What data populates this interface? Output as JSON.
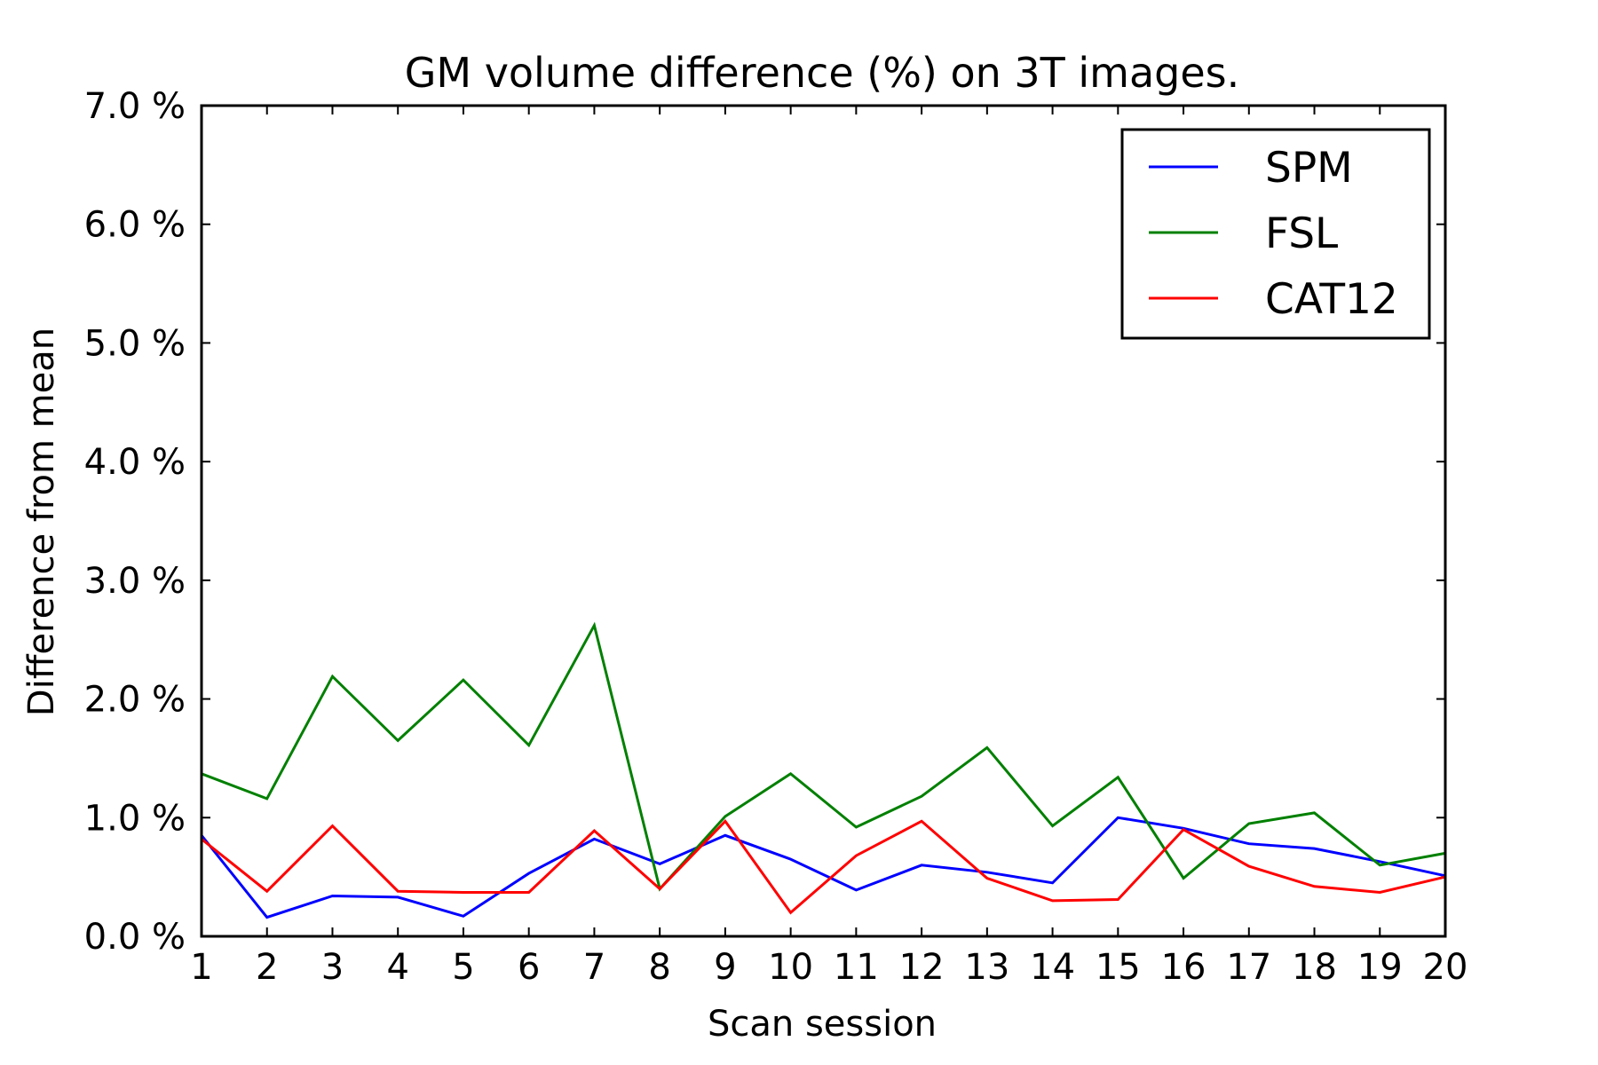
{
  "chart_data": {
    "type": "line",
    "title": "GM volume difference (%) on 3T images.",
    "xlabel": "Scan session",
    "ylabel": "Difference from mean",
    "x": [
      1,
      2,
      3,
      4,
      5,
      6,
      7,
      8,
      9,
      10,
      11,
      12,
      13,
      14,
      15,
      16,
      17,
      18,
      19,
      20
    ],
    "xlim": [
      1,
      20
    ],
    "ylim": [
      0,
      7.0
    ],
    "y_ticks": [
      "0.0 %",
      "1.0 %",
      "2.0 %",
      "3.0 %",
      "4.0 %",
      "5.0 %",
      "6.0 %",
      "7.0 %"
    ],
    "y_tick_values": [
      0,
      1,
      2,
      3,
      4,
      5,
      6,
      7
    ],
    "x_ticks": [
      "1",
      "2",
      "3",
      "4",
      "5",
      "6",
      "7",
      "8",
      "9",
      "10",
      "11",
      "12",
      "13",
      "14",
      "15",
      "16",
      "17",
      "18",
      "19",
      "20"
    ],
    "grid": false,
    "legend_position": "top-right",
    "series": [
      {
        "name": "SPM",
        "color": "#0000ff",
        "values": [
          0.85,
          0.16,
          0.34,
          0.33,
          0.17,
          0.53,
          0.82,
          0.61,
          0.85,
          0.65,
          0.39,
          0.6,
          0.54,
          0.45,
          1.0,
          0.91,
          0.78,
          0.74,
          0.63,
          0.51
        ]
      },
      {
        "name": "FSL",
        "color": "#008000",
        "values": [
          1.37,
          1.16,
          2.19,
          1.65,
          2.16,
          1.61,
          2.62,
          0.4,
          1.01,
          1.37,
          0.92,
          1.18,
          1.59,
          0.93,
          1.34,
          0.49,
          0.95,
          1.04,
          0.6,
          0.7
        ]
      },
      {
        "name": "CAT12",
        "color": "#ff0000",
        "values": [
          0.82,
          0.38,
          0.93,
          0.38,
          0.37,
          0.37,
          0.89,
          0.4,
          0.97,
          0.2,
          0.68,
          0.97,
          0.49,
          0.3,
          0.31,
          0.9,
          0.59,
          0.42,
          0.37,
          0.5
        ]
      }
    ]
  }
}
